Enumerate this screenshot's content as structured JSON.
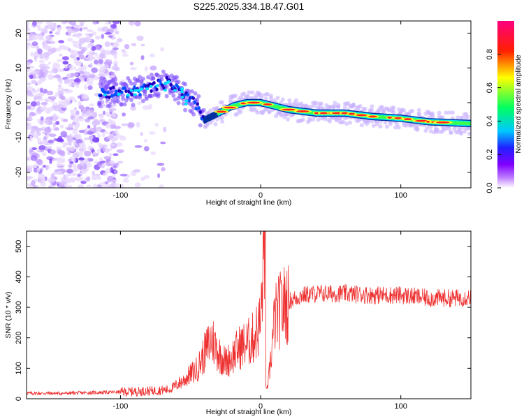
{
  "title": "S225.2025.334.18.47.G01",
  "chart_data": [
    {
      "type": "heatmap",
      "xlabel": "Height of straight line (km)",
      "ylabel": "Frequency (Hz)",
      "xlim": [
        -167,
        150
      ],
      "ylim": [
        -24.5,
        23.5
      ],
      "xticks": [
        -100,
        0,
        100
      ],
      "yticks": [
        -20,
        -10,
        0,
        10,
        20
      ],
      "colorbar": {
        "label": "Normalized spectral amplitude",
        "range": [
          0.0,
          1.0
        ],
        "ticks": [
          0.0,
          0.2,
          0.4,
          0.6,
          0.8
        ],
        "colormap": [
          "#ffffff",
          "#a000ff",
          "#3000ff",
          "#00c8ff",
          "#00ff40",
          "#ffff00",
          "#ff2000",
          "#ff0080"
        ]
      },
      "ridge": {
        "description_points_x": [
          -115,
          -95,
          -80,
          -65,
          -55,
          -45,
          -40,
          -30,
          -20,
          -10,
          0,
          20,
          40,
          60,
          80,
          100,
          120,
          150
        ],
        "description_points_y": [
          3,
          3,
          4,
          6,
          2,
          -1,
          -5,
          -3,
          -1,
          0,
          0,
          -2,
          -3,
          -3,
          -4,
          -4.5,
          -5.5,
          -6
        ]
      }
    },
    {
      "type": "line",
      "xlabel": "Height of straight line (km)",
      "ylabel": "SNR (10 * v/v)",
      "xlim": [
        -167,
        150
      ],
      "ylim": [
        0,
        550
      ],
      "xticks": [
        -100,
        0,
        100
      ],
      "yticks": [
        0,
        100,
        200,
        300,
        400,
        500
      ],
      "color": "#ee3030",
      "series": [
        {
          "name": "SNR",
          "x": [
            -167,
            -140,
            -120,
            -100,
            -80,
            -65,
            -55,
            -45,
            -40,
            -35,
            -30,
            -25,
            -20,
            -15,
            -10,
            -5,
            0,
            3,
            5,
            10,
            15,
            20,
            30,
            40,
            60,
            80,
            100,
            120,
            140,
            150
          ],
          "y": [
            18,
            18,
            20,
            22,
            25,
            30,
            60,
            100,
            150,
            200,
            150,
            120,
            140,
            170,
            180,
            200,
            250,
            550,
            30,
            260,
            300,
            320,
            340,
            345,
            345,
            340,
            340,
            330,
            330,
            335
          ]
        }
      ]
    }
  ]
}
